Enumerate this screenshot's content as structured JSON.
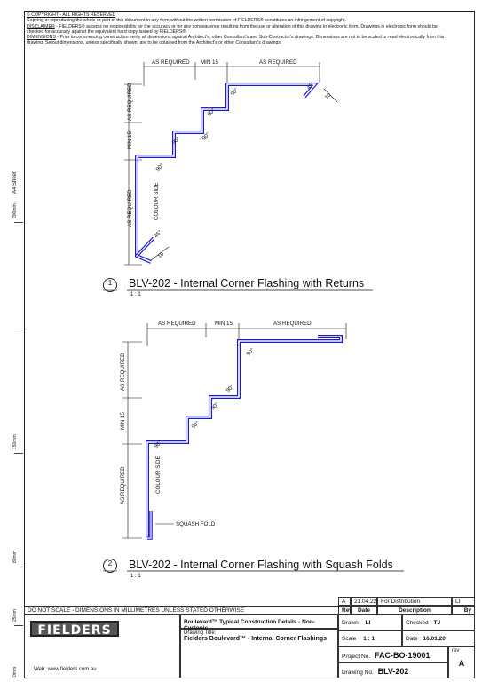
{
  "notes": {
    "copyright_title": "© COPYRIGHT - ALL RIGHTS RESERVED",
    "copyright_text": "Copying or reproducing the whole or part of this document in any form without the written permission of FIELDERS® constitutes an infringement of copyright.",
    "disclaimer_label": "DISCLAIMER",
    "disclaimer_text": " - FIELDERS® accepts no responsibility for the accuracy or for any consequence resulting from the use or alteration of this drawing in electronic form.  Drawings in electronic form should be checked for accuracy against the equivalent hard copy issued by FIELDERS®.",
    "dimensions_label": "DIMENSIONS",
    "dimensions_text": " - Prior to commencing construction verify all dimensions against Architect's, other Consultant's and Sub-Contractor's drawings. Dimensions are not to be scaled or read electronically from this drawing. Setout dimensions, unless specifically shown, are to be obtained from the Architect's or other Consultant's drawings."
  },
  "margin": {
    "sheet_label": "A4 Sheet",
    "scale_200": "200mm",
    "scale_150": "150mm",
    "scale_80": "80mm",
    "scale_25": "25mm",
    "scale_0": "0mm"
  },
  "views": [
    {
      "number": "1",
      "title": "BLV-202 - Internal Corner Flashing with Returns",
      "scale": "1 : 1"
    },
    {
      "number": "2",
      "title": "BLV-202 - Internal Corner Flashing with Squash Folds",
      "scale": "1 : 1"
    }
  ],
  "dims": {
    "as_required": "AS REQUIRED",
    "min15": "MIN 15",
    "deg90": "90°",
    "deg45": "45°",
    "ten": "10",
    "colour_side": "COLOUR SIDE",
    "squash_fold": "SQUASH FOLD"
  },
  "title_block": {
    "revision": {
      "rev": "A",
      "date": "21.04.22",
      "description": "For Distribution",
      "by": "LI"
    },
    "rev_header": "Rev",
    "date_header": "Date",
    "desc_header": "Description",
    "by_header": "By",
    "do_not_scale": "DO NOT SCALE - DIMENSIONS IN MILLIMETRES UNLESS STATED OTHERWISE",
    "logo": "FIELDERS",
    "website": "Web: www.fielders.com.au",
    "series": "Boulevard™ Typical Construction Details - Non-Cyclonic",
    "drawing_title_label": "Drawing Title:",
    "drawing_title": "Fielders Boulevard™ - Internal Corner Flashings",
    "drawn_label": "Drawn",
    "drawn": "LI",
    "checked_label": "Checked",
    "checked": "TJ",
    "scale_label": "Scale",
    "scale": "1 : 1",
    "date_label": "Date",
    "date": "16.01.20",
    "project_label": "Project No.",
    "project": "FAC-BO-19001",
    "rev_label": "rev",
    "drawing_no_label": "Drawing No.",
    "drawing_no": "BLV-202",
    "rev_value": "A"
  }
}
